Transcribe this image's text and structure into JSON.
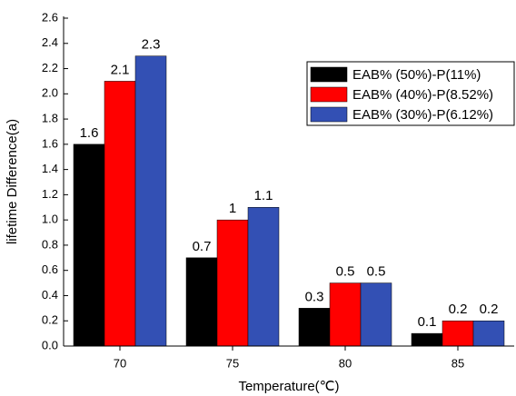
{
  "chart_data": {
    "type": "bar",
    "x_label": "Temperature(℃)",
    "y_label": "lifetime Difference(a)",
    "categories": [
      "70",
      "75",
      "80",
      "85"
    ],
    "series": [
      {
        "name": "EAB% (50%)-P(11%)",
        "color": "#000000",
        "values": [
          1.6,
          0.7,
          0.3,
          0.1
        ]
      },
      {
        "name": "EAB% (40%)-P(8.52%)",
        "color": "#ff0000",
        "values": [
          2.1,
          1,
          0.5,
          0.2
        ]
      },
      {
        "name": "EAB% (30%)-P(6.12%)",
        "color": "#3350b4",
        "values": [
          2.3,
          1.1,
          0.5,
          0.2
        ]
      }
    ],
    "ylim": [
      0,
      2.6
    ],
    "yticks": [
      {
        "value": 0,
        "label": "0.0"
      },
      0.2,
      0.4,
      0.6,
      0.8,
      {
        "value": 1,
        "label": "1.0"
      },
      1.2,
      1.4,
      1.6,
      1.8,
      {
        "value": 2,
        "label": "2.0"
      },
      2.2,
      2.4,
      2.6
    ],
    "legend": "upper right"
  }
}
